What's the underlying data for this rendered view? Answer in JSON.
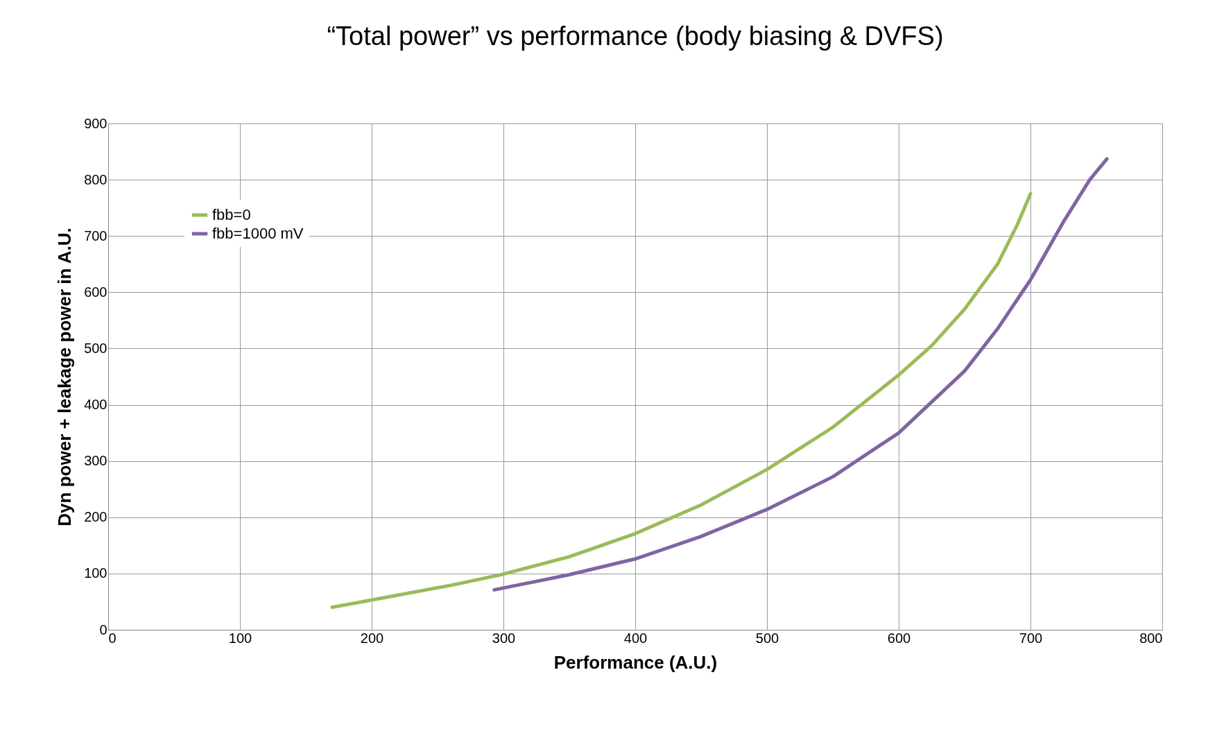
{
  "chart_data": {
    "type": "line",
    "title": "“Total power” vs performance (body biasing & DVFS)",
    "xlabel": "Performance (A.U.)",
    "ylabel": "Dyn power + leakage power in A.U.",
    "xlim": [
      0,
      800
    ],
    "xticks": [
      0,
      100,
      200,
      300,
      400,
      500,
      600,
      700,
      800
    ],
    "ylim": [
      0,
      900
    ],
    "yticks": [
      0,
      100,
      200,
      300,
      400,
      500,
      600,
      700,
      800,
      900
    ],
    "grid": true,
    "legend": "top left",
    "marker": "none",
    "line_style": "solid",
    "series": [
      {
        "name": "fbb=0",
        "color": "#9bbb59",
        "x": [
          170,
          200,
          262,
          300,
          350,
          400,
          450,
          500,
          550,
          600,
          625,
          650,
          675,
          690,
          700
        ],
        "values": [
          40,
          53,
          80,
          99,
          130,
          171,
          222,
          285,
          360,
          453,
          505,
          570,
          650,
          720,
          775
        ]
      },
      {
        "name": "fbb=1000 mV",
        "color": "#8064a2",
        "x": [
          293,
          350,
          400,
          450,
          500,
          550,
          600,
          650,
          675,
          700,
          725,
          745,
          758
        ],
        "values": [
          71,
          98,
          126,
          166,
          214,
          272,
          350,
          460,
          535,
          622,
          725,
          800,
          837
        ]
      }
    ]
  }
}
